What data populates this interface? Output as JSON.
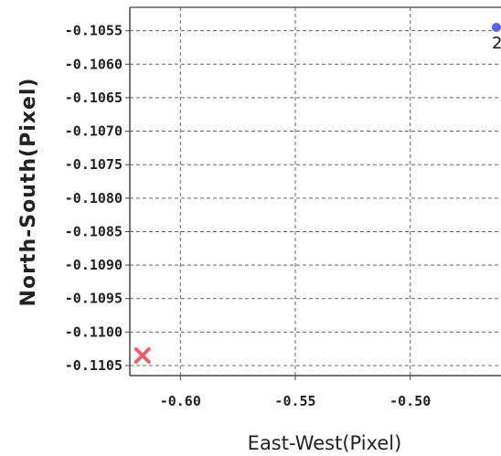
{
  "chart_data": {
    "type": "scatter",
    "xlabel": "East-West(Pixel)",
    "ylabel": "North-South(Pixel)",
    "xlim": [
      -0.622,
      -0.4605
    ],
    "ylim": [
      -0.11065,
      -0.10515
    ],
    "x_ticks": [
      -0.6,
      -0.55,
      -0.5
    ],
    "x_tick_labels": [
      "-0.60",
      "-0.55",
      "-0.50"
    ],
    "y_ticks": [
      -0.1055,
      -0.106,
      -0.1065,
      -0.107,
      -0.1075,
      -0.108,
      -0.1085,
      -0.109,
      -0.1095,
      -0.11,
      -0.1105
    ],
    "y_tick_labels": [
      "-0.1055",
      "-0.1060",
      "-0.1065",
      "-0.1070",
      "-0.1075",
      "-0.1080",
      "-0.1085",
      "-0.1090",
      "-0.1095",
      "-0.1100",
      "-0.1105"
    ],
    "grid": true,
    "grid_style": "dashed",
    "colors": {
      "point": "#5a63e6",
      "marker_x": "#e8606a",
      "grid": "#666666",
      "frame": "#444444"
    },
    "points": [
      {
        "x": -0.4625,
        "y": -0.10545,
        "marker": "circle",
        "label": "2"
      },
      {
        "x": -0.6165,
        "y": -0.11035,
        "marker": "x",
        "label": ""
      }
    ]
  }
}
